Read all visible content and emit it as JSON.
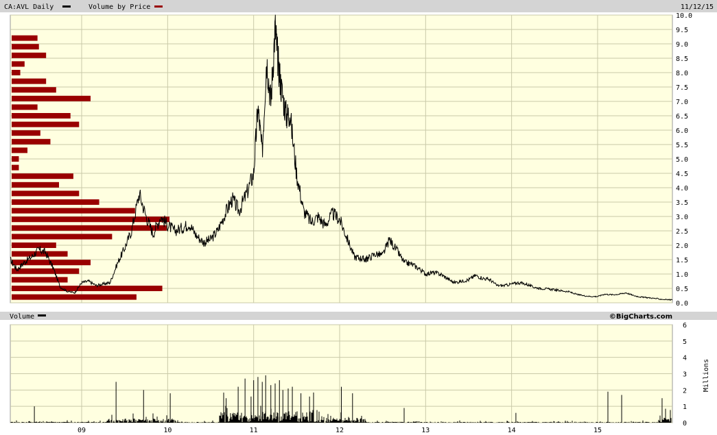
{
  "header": {
    "symbol_label": "CA:AVL Daily",
    "vbp_label": "Volume by Price",
    "date": "11/12/15"
  },
  "volume_panel": {
    "title": "Volume",
    "watermark": "©BigCharts.com",
    "unit_label": "Millions"
  },
  "colors": {
    "panel_bg": "#ffffe0",
    "header_bg": "#d4d4d4",
    "grid": "#c9c9a8",
    "price_line": "#000000",
    "vbp_bar": "#990000",
    "volume_bar": "#000000"
  },
  "chart_data": [
    {
      "type": "line",
      "title": "CA:AVL Daily",
      "x_tick_labels": [
        "09",
        "10",
        "11",
        "12",
        "13",
        "14",
        "15"
      ],
      "x_range": [
        2008.17,
        2015.87
      ],
      "ylim": [
        0,
        10
      ],
      "y_ticks": [
        "0.0",
        "0.5",
        "1.0",
        "1.5",
        "2.0",
        "2.5",
        "3.0",
        "3.5",
        "4.0",
        "4.5",
        "5.0",
        "5.5",
        "6.0",
        "6.5",
        "7.0",
        "7.5",
        "8.0",
        "8.5",
        "9.0",
        "9.5",
        "10.0"
      ],
      "grid": true,
      "series": [
        {
          "name": "CA:AVL Daily",
          "x": [
            2008.17,
            2008.25,
            2008.33,
            2008.42,
            2008.5,
            2008.58,
            2008.67,
            2008.75,
            2008.83,
            2008.92,
            2009.0,
            2009.08,
            2009.17,
            2009.25,
            2009.33,
            2009.42,
            2009.5,
            2009.58,
            2009.67,
            2009.75,
            2009.83,
            2009.92,
            2010.0,
            2010.08,
            2010.17,
            2010.25,
            2010.33,
            2010.42,
            2010.5,
            2010.58,
            2010.67,
            2010.75,
            2010.83,
            2010.92,
            2011.0,
            2011.05,
            2011.1,
            2011.15,
            2011.2,
            2011.25,
            2011.28,
            2011.32,
            2011.38,
            2011.42,
            2011.5,
            2011.58,
            2011.67,
            2011.75,
            2011.83,
            2011.92,
            2012.0,
            2012.08,
            2012.17,
            2012.25,
            2012.3,
            2012.33,
            2012.42,
            2012.5,
            2012.58,
            2012.67,
            2012.75,
            2012.83,
            2012.92,
            2013.0,
            2013.08,
            2013.17,
            2013.25,
            2013.33,
            2013.42,
            2013.5,
            2013.58,
            2013.67,
            2013.75,
            2013.83,
            2013.92,
            2014.0,
            2014.08,
            2014.17,
            2014.25,
            2014.33,
            2014.42,
            2014.5,
            2014.58,
            2014.67,
            2014.75,
            2014.83,
            2014.92,
            2015.0,
            2015.08,
            2015.17,
            2015.25,
            2015.33,
            2015.42,
            2015.5,
            2015.58,
            2015.67,
            2015.75,
            2015.87
          ],
          "y": [
            1.5,
            1.15,
            1.4,
            1.6,
            1.85,
            1.75,
            1.2,
            0.55,
            0.4,
            0.35,
            0.7,
            0.75,
            0.6,
            0.65,
            0.7,
            1.4,
            1.9,
            2.5,
            3.8,
            3.0,
            2.4,
            3.0,
            2.7,
            2.5,
            2.6,
            2.75,
            2.35,
            2.1,
            2.2,
            2.5,
            3.1,
            3.6,
            3.2,
            3.8,
            4.5,
            6.8,
            5.2,
            8.5,
            7.0,
            9.6,
            8.5,
            7.5,
            6.5,
            6.6,
            4.5,
            3.2,
            2.8,
            3.0,
            2.7,
            3.1,
            2.9,
            2.3,
            1.6,
            1.55,
            1.5,
            1.55,
            1.7,
            1.65,
            2.2,
            1.8,
            1.4,
            1.35,
            1.2,
            1.0,
            1.05,
            1.0,
            0.85,
            0.7,
            0.75,
            0.8,
            0.95,
            0.85,
            0.8,
            0.6,
            0.6,
            0.65,
            0.7,
            0.65,
            0.55,
            0.5,
            0.48,
            0.45,
            0.42,
            0.38,
            0.3,
            0.25,
            0.22,
            0.22,
            0.3,
            0.28,
            0.3,
            0.35,
            0.25,
            0.2,
            0.18,
            0.15,
            0.12,
            0.1
          ]
        }
      ]
    },
    {
      "type": "bar",
      "title": "Volume by Price",
      "orientation": "horizontal",
      "price_levels": [
        9.2,
        8.9,
        8.6,
        8.3,
        8.0,
        7.7,
        7.4,
        7.1,
        6.8,
        6.5,
        6.2,
        5.9,
        5.6,
        5.3,
        5.0,
        4.7,
        4.4,
        4.1,
        3.8,
        3.5,
        3.2,
        2.9,
        2.6,
        2.3,
        2.0,
        1.7,
        1.4,
        1.1,
        0.8,
        0.5,
        0.2
      ],
      "values": [
        0.18,
        0.19,
        0.24,
        0.09,
        0.06,
        0.24,
        0.31,
        0.55,
        0.18,
        0.41,
        0.47,
        0.2,
        0.27,
        0.11,
        0.05,
        0.05,
        0.43,
        0.33,
        0.47,
        0.61,
        0.86,
        1.1,
        1.08,
        0.7,
        0.31,
        0.39,
        0.55,
        0.47,
        0.39,
        1.05,
        0.87
      ]
    },
    {
      "type": "bar",
      "title": "Volume",
      "ylabel": "Millions",
      "ylim": [
        0,
        6
      ],
      "y_ticks": [
        "0",
        "1",
        "2",
        "3",
        "4",
        "5",
        "6"
      ],
      "spikes": {
        "x": [
          2008.45,
          2009.4,
          2009.72,
          2010.03,
          2010.68,
          2010.82,
          2010.9,
          2010.97,
          2011.0,
          2011.05,
          2011.1,
          2011.14,
          2011.2,
          2011.25,
          2011.3,
          2011.34,
          2011.45,
          2011.55,
          2011.65,
          2012.02,
          2012.15,
          2012.75,
          2014.05,
          2015.12,
          2015.28,
          2015.75
        ],
        "y": [
          1.0,
          2.5,
          2.0,
          1.8,
          1.5,
          2.2,
          2.7,
          1.6,
          2.6,
          2.8,
          2.5,
          2.9,
          2.3,
          2.4,
          2.6,
          2.0,
          2.2,
          1.8,
          1.6,
          2.2,
          1.8,
          0.9,
          0.6,
          1.9,
          1.7,
          1.5
        ]
      }
    }
  ]
}
